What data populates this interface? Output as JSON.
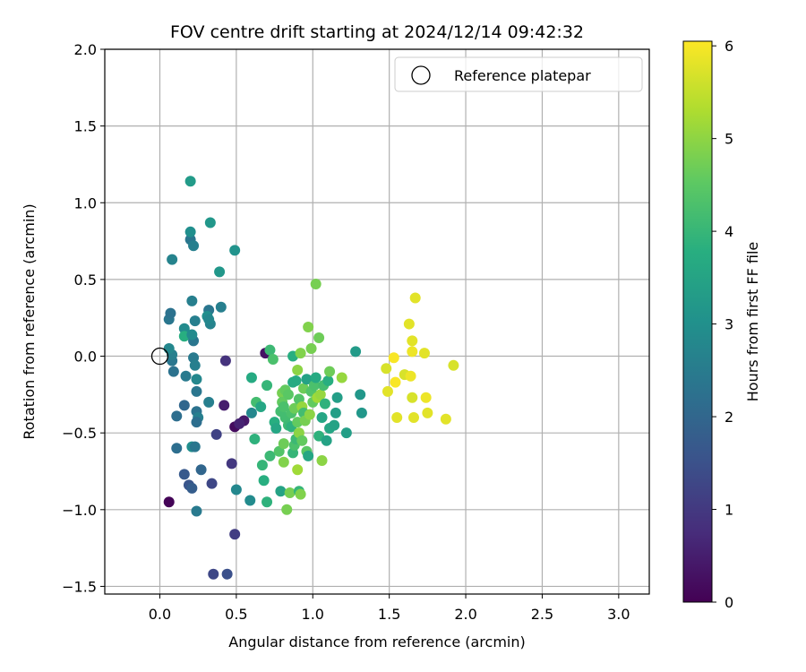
{
  "chart_data": {
    "type": "scatter",
    "title": "FOV centre drift starting at 2024/12/14 09:42:32",
    "xlabel": "Angular distance from reference (arcmin)",
    "ylabel": "Rotation from reference (arcmin)",
    "xlim": [
      -0.36,
      3.2
    ],
    "ylim": [
      -1.55,
      2.0
    ],
    "x_ticks": [
      0.0,
      0.5,
      1.0,
      1.5,
      2.0,
      2.5,
      3.0
    ],
    "x_tick_labels": [
      "0.0",
      "0.5",
      "1.0",
      "1.5",
      "2.0",
      "2.5",
      "3.0"
    ],
    "y_ticks": [
      -1.5,
      -1.0,
      -0.5,
      0.0,
      0.5,
      1.0,
      1.5,
      2.0
    ],
    "y_tick_labels": [
      "−1.5",
      "−1.0",
      "−0.5",
      "0.0",
      "0.5",
      "1.0",
      "1.5",
      "2.0"
    ],
    "grid": true,
    "colormap": "viridis",
    "colorbar": {
      "label": "Hours from first FF file",
      "range": [
        0,
        6.05
      ],
      "ticks": [
        0,
        1,
        2,
        3,
        4,
        5,
        6
      ],
      "tick_labels": [
        "0",
        "1",
        "2",
        "3",
        "4",
        "5",
        "6"
      ]
    },
    "legend": {
      "position": "top-right",
      "entries": [
        {
          "label": "Reference platepar",
          "marker": "open-circle",
          "color": "#000000"
        }
      ]
    },
    "reference_point": {
      "x": 0.0,
      "y": 0.0
    },
    "points": [
      {
        "x": 0.06,
        "y": -0.95,
        "t": 0.05
      },
      {
        "x": 0.49,
        "y": -0.46,
        "t": 0.2
      },
      {
        "x": 0.55,
        "y": -0.42,
        "t": 0.4
      },
      {
        "x": 0.52,
        "y": -0.44,
        "t": 0.6
      },
      {
        "x": 0.69,
        "y": 0.02,
        "t": 0.3
      },
      {
        "x": 0.42,
        "y": -0.32,
        "t": 0.5
      },
      {
        "x": 0.43,
        "y": -0.03,
        "t": 0.9
      },
      {
        "x": 0.47,
        "y": -0.7,
        "t": 1.0
      },
      {
        "x": 0.49,
        "y": -1.16,
        "t": 1.1
      },
      {
        "x": 0.35,
        "y": -1.42,
        "t": 1.3
      },
      {
        "x": 0.44,
        "y": -1.42,
        "t": 1.5
      },
      {
        "x": 0.34,
        "y": -0.83,
        "t": 1.3
      },
      {
        "x": 0.37,
        "y": -0.51,
        "t": 1.2
      },
      {
        "x": 0.19,
        "y": -0.84,
        "t": 1.6
      },
      {
        "x": 0.21,
        "y": -0.86,
        "t": 1.8
      },
      {
        "x": 0.16,
        "y": -0.77,
        "t": 1.7
      },
      {
        "x": 0.27,
        "y": -0.74,
        "t": 2.0
      },
      {
        "x": 0.11,
        "y": -0.6,
        "t": 2.2
      },
      {
        "x": 0.21,
        "y": -0.59,
        "t": 3.0
      },
      {
        "x": 0.23,
        "y": -0.59,
        "t": 2.4
      },
      {
        "x": 0.24,
        "y": -1.01,
        "t": 2.5
      },
      {
        "x": 0.11,
        "y": -0.39,
        "t": 2.2
      },
      {
        "x": 0.16,
        "y": -0.32,
        "t": 2.0
      },
      {
        "x": 0.24,
        "y": -0.36,
        "t": 2.3
      },
      {
        "x": 0.25,
        "y": -0.4,
        "t": 2.6
      },
      {
        "x": 0.24,
        "y": -0.43,
        "t": 2.2
      },
      {
        "x": 0.32,
        "y": -0.3,
        "t": 2.6
      },
      {
        "x": 0.24,
        "y": -0.23,
        "t": 2.4
      },
      {
        "x": 0.24,
        "y": -0.15,
        "t": 2.8
      },
      {
        "x": 0.17,
        "y": -0.13,
        "t": 2.5
      },
      {
        "x": 0.09,
        "y": -0.1,
        "t": 2.3
      },
      {
        "x": 0.08,
        "y": -0.03,
        "t": 2.4
      },
      {
        "x": 0.08,
        "y": 0.01,
        "t": 2.6
      },
      {
        "x": 0.06,
        "y": 0.05,
        "t": 2.8
      },
      {
        "x": 0.22,
        "y": -0.01,
        "t": 2.5
      },
      {
        "x": 0.23,
        "y": -0.06,
        "t": 2.6
      },
      {
        "x": 0.16,
        "y": 0.18,
        "t": 2.9
      },
      {
        "x": 0.16,
        "y": 0.13,
        "t": 3.8
      },
      {
        "x": 0.22,
        "y": 0.1,
        "t": 2.4
      },
      {
        "x": 0.21,
        "y": 0.14,
        "t": 2.9
      },
      {
        "x": 0.23,
        "y": 0.23,
        "t": 2.6
      },
      {
        "x": 0.32,
        "y": 0.3,
        "t": 2.4
      },
      {
        "x": 0.33,
        "y": 0.21,
        "t": 2.7
      },
      {
        "x": 0.31,
        "y": 0.26,
        "t": 3.0
      },
      {
        "x": 0.32,
        "y": 0.24,
        "t": 2.8
      },
      {
        "x": 0.4,
        "y": 0.32,
        "t": 2.6
      },
      {
        "x": 0.06,
        "y": 0.24,
        "t": 2.4
      },
      {
        "x": 0.07,
        "y": 0.28,
        "t": 2.3
      },
      {
        "x": 0.21,
        "y": 0.36,
        "t": 2.6
      },
      {
        "x": 0.08,
        "y": 0.63,
        "t": 2.7
      },
      {
        "x": 0.2,
        "y": 0.76,
        "t": 2.4
      },
      {
        "x": 0.22,
        "y": 0.72,
        "t": 2.6
      },
      {
        "x": 0.2,
        "y": 0.81,
        "t": 3.0
      },
      {
        "x": 0.33,
        "y": 0.87,
        "t": 3.2
      },
      {
        "x": 0.39,
        "y": 0.55,
        "t": 3.2
      },
      {
        "x": 0.49,
        "y": 0.69,
        "t": 3.1
      },
      {
        "x": 0.2,
        "y": 1.14,
        "t": 3.3
      },
      {
        "x": 0.6,
        "y": -0.37,
        "t": 2.8
      },
      {
        "x": 0.5,
        "y": -0.87,
        "t": 2.8
      },
      {
        "x": 0.59,
        "y": -0.94,
        "t": 2.9
      },
      {
        "x": 0.63,
        "y": -0.3,
        "t": 4.2
      },
      {
        "x": 0.66,
        "y": -0.33,
        "t": 3.6
      },
      {
        "x": 0.62,
        "y": -0.54,
        "t": 3.9
      },
      {
        "x": 0.6,
        "y": -0.14,
        "t": 3.7
      },
      {
        "x": 0.67,
        "y": -0.71,
        "t": 4.0
      },
      {
        "x": 0.68,
        "y": -0.81,
        "t": 3.8
      },
      {
        "x": 0.7,
        "y": -0.95,
        "t": 3.9
      },
      {
        "x": 0.72,
        "y": -0.65,
        "t": 4.1
      },
      {
        "x": 0.7,
        "y": -0.19,
        "t": 4.0
      },
      {
        "x": 0.72,
        "y": 0.04,
        "t": 4.1
      },
      {
        "x": 0.74,
        "y": -0.02,
        "t": 4.3
      },
      {
        "x": 0.75,
        "y": -0.43,
        "t": 3.8
      },
      {
        "x": 0.76,
        "y": -0.47,
        "t": 3.6
      },
      {
        "x": 0.78,
        "y": -0.62,
        "t": 4.4
      },
      {
        "x": 0.79,
        "y": -0.88,
        "t": 3.5
      },
      {
        "x": 0.79,
        "y": -0.36,
        "t": 4.2
      },
      {
        "x": 0.8,
        "y": -0.24,
        "t": 4.8
      },
      {
        "x": 0.8,
        "y": -0.3,
        "t": 4.6
      },
      {
        "x": 0.81,
        "y": -0.33,
        "t": 4.3
      },
      {
        "x": 0.81,
        "y": -0.57,
        "t": 4.7
      },
      {
        "x": 0.81,
        "y": -0.69,
        "t": 4.9
      },
      {
        "x": 0.82,
        "y": -0.4,
        "t": 4.2
      },
      {
        "x": 0.82,
        "y": -0.22,
        "t": 4.6
      },
      {
        "x": 0.83,
        "y": -1.0,
        "t": 4.8
      },
      {
        "x": 0.84,
        "y": -0.25,
        "t": 4.5
      },
      {
        "x": 0.84,
        "y": -0.45,
        "t": 4.1
      },
      {
        "x": 0.85,
        "y": -0.89,
        "t": 4.8
      },
      {
        "x": 0.86,
        "y": -0.37,
        "t": 4.3
      },
      {
        "x": 0.86,
        "y": -0.46,
        "t": 3.9
      },
      {
        "x": 0.87,
        "y": -0.17,
        "t": 3.7
      },
      {
        "x": 0.87,
        "y": -0.63,
        "t": 4.0
      },
      {
        "x": 0.87,
        "y": 0.0,
        "t": 3.8
      },
      {
        "x": 0.88,
        "y": -0.58,
        "t": 4.3
      },
      {
        "x": 0.88,
        "y": -0.34,
        "t": 4.7
      },
      {
        "x": 0.89,
        "y": -0.54,
        "t": 4.1
      },
      {
        "x": 0.89,
        "y": -0.16,
        "t": 3.7
      },
      {
        "x": 0.9,
        "y": -0.74,
        "t": 5.2
      },
      {
        "x": 0.9,
        "y": -0.43,
        "t": 4.6
      },
      {
        "x": 0.9,
        "y": -0.09,
        "t": 5.0
      },
      {
        "x": 0.91,
        "y": -0.28,
        "t": 4.4
      },
      {
        "x": 0.91,
        "y": -0.88,
        "t": 4.0
      },
      {
        "x": 0.91,
        "y": -0.5,
        "t": 5.0
      },
      {
        "x": 0.92,
        "y": -0.9,
        "t": 4.9
      },
      {
        "x": 0.92,
        "y": 0.02,
        "t": 4.9
      },
      {
        "x": 0.93,
        "y": -0.55,
        "t": 4.6
      },
      {
        "x": 0.93,
        "y": -0.33,
        "t": 5.1
      },
      {
        "x": 0.94,
        "y": -0.21,
        "t": 4.7
      },
      {
        "x": 0.94,
        "y": -0.37,
        "t": 4.2
      },
      {
        "x": 0.95,
        "y": -0.42,
        "t": 4.8
      },
      {
        "x": 0.96,
        "y": -0.15,
        "t": 3.5
      },
      {
        "x": 0.96,
        "y": -0.62,
        "t": 4.5
      },
      {
        "x": 0.97,
        "y": -0.65,
        "t": 3.6
      },
      {
        "x": 0.97,
        "y": 0.19,
        "t": 4.9
      },
      {
        "x": 0.98,
        "y": -0.38,
        "t": 5.0
      },
      {
        "x": 0.99,
        "y": -0.23,
        "t": 4.4
      },
      {
        "x": 0.99,
        "y": 0.05,
        "t": 4.8
      },
      {
        "x": 1.0,
        "y": -0.3,
        "t": 4.6
      },
      {
        "x": 1.01,
        "y": -0.19,
        "t": 4.3
      },
      {
        "x": 1.02,
        "y": 0.47,
        "t": 4.8
      },
      {
        "x": 1.02,
        "y": -0.14,
        "t": 3.7
      },
      {
        "x": 1.03,
        "y": -0.27,
        "t": 5.2
      },
      {
        "x": 1.04,
        "y": 0.12,
        "t": 4.7
      },
      {
        "x": 1.04,
        "y": -0.52,
        "t": 3.9
      },
      {
        "x": 1.05,
        "y": -0.25,
        "t": 5.1
      },
      {
        "x": 1.06,
        "y": -0.4,
        "t": 3.6
      },
      {
        "x": 1.06,
        "y": -0.68,
        "t": 5.0
      },
      {
        "x": 1.07,
        "y": -0.19,
        "t": 4.2
      },
      {
        "x": 1.08,
        "y": -0.31,
        "t": 3.9
      },
      {
        "x": 1.09,
        "y": -0.55,
        "t": 3.5
      },
      {
        "x": 1.1,
        "y": -0.16,
        "t": 3.8
      },
      {
        "x": 1.11,
        "y": -0.1,
        "t": 4.7
      },
      {
        "x": 1.11,
        "y": -0.47,
        "t": 3.6
      },
      {
        "x": 1.14,
        "y": -0.45,
        "t": 3.5
      },
      {
        "x": 1.15,
        "y": -0.37,
        "t": 3.4
      },
      {
        "x": 1.16,
        "y": -0.27,
        "t": 3.4
      },
      {
        "x": 1.19,
        "y": -0.14,
        "t": 5.1
      },
      {
        "x": 1.22,
        "y": -0.5,
        "t": 3.4
      },
      {
        "x": 1.28,
        "y": 0.03,
        "t": 3.3
      },
      {
        "x": 1.31,
        "y": -0.25,
        "t": 3.2
      },
      {
        "x": 1.32,
        "y": -0.37,
        "t": 3.2
      },
      {
        "x": 1.48,
        "y": -0.08,
        "t": 5.7
      },
      {
        "x": 1.49,
        "y": -0.23,
        "t": 5.8
      },
      {
        "x": 1.53,
        "y": -0.01,
        "t": 6.0
      },
      {
        "x": 1.54,
        "y": -0.17,
        "t": 6.0
      },
      {
        "x": 1.55,
        "y": -0.4,
        "t": 5.8
      },
      {
        "x": 1.6,
        "y": -0.12,
        "t": 5.7
      },
      {
        "x": 1.63,
        "y": 0.21,
        "t": 5.8
      },
      {
        "x": 1.64,
        "y": -0.13,
        "t": 5.9
      },
      {
        "x": 1.65,
        "y": 0.1,
        "t": 5.8
      },
      {
        "x": 1.65,
        "y": 0.03,
        "t": 5.9
      },
      {
        "x": 1.65,
        "y": -0.27,
        "t": 5.7
      },
      {
        "x": 1.66,
        "y": -0.4,
        "t": 5.8
      },
      {
        "x": 1.67,
        "y": 0.38,
        "t": 5.8
      },
      {
        "x": 1.73,
        "y": 0.02,
        "t": 5.8
      },
      {
        "x": 1.74,
        "y": -0.27,
        "t": 5.9
      },
      {
        "x": 1.75,
        "y": -0.37,
        "t": 5.8
      },
      {
        "x": 1.87,
        "y": -0.41,
        "t": 5.8
      },
      {
        "x": 1.92,
        "y": -0.06,
        "t": 5.7
      }
    ]
  }
}
